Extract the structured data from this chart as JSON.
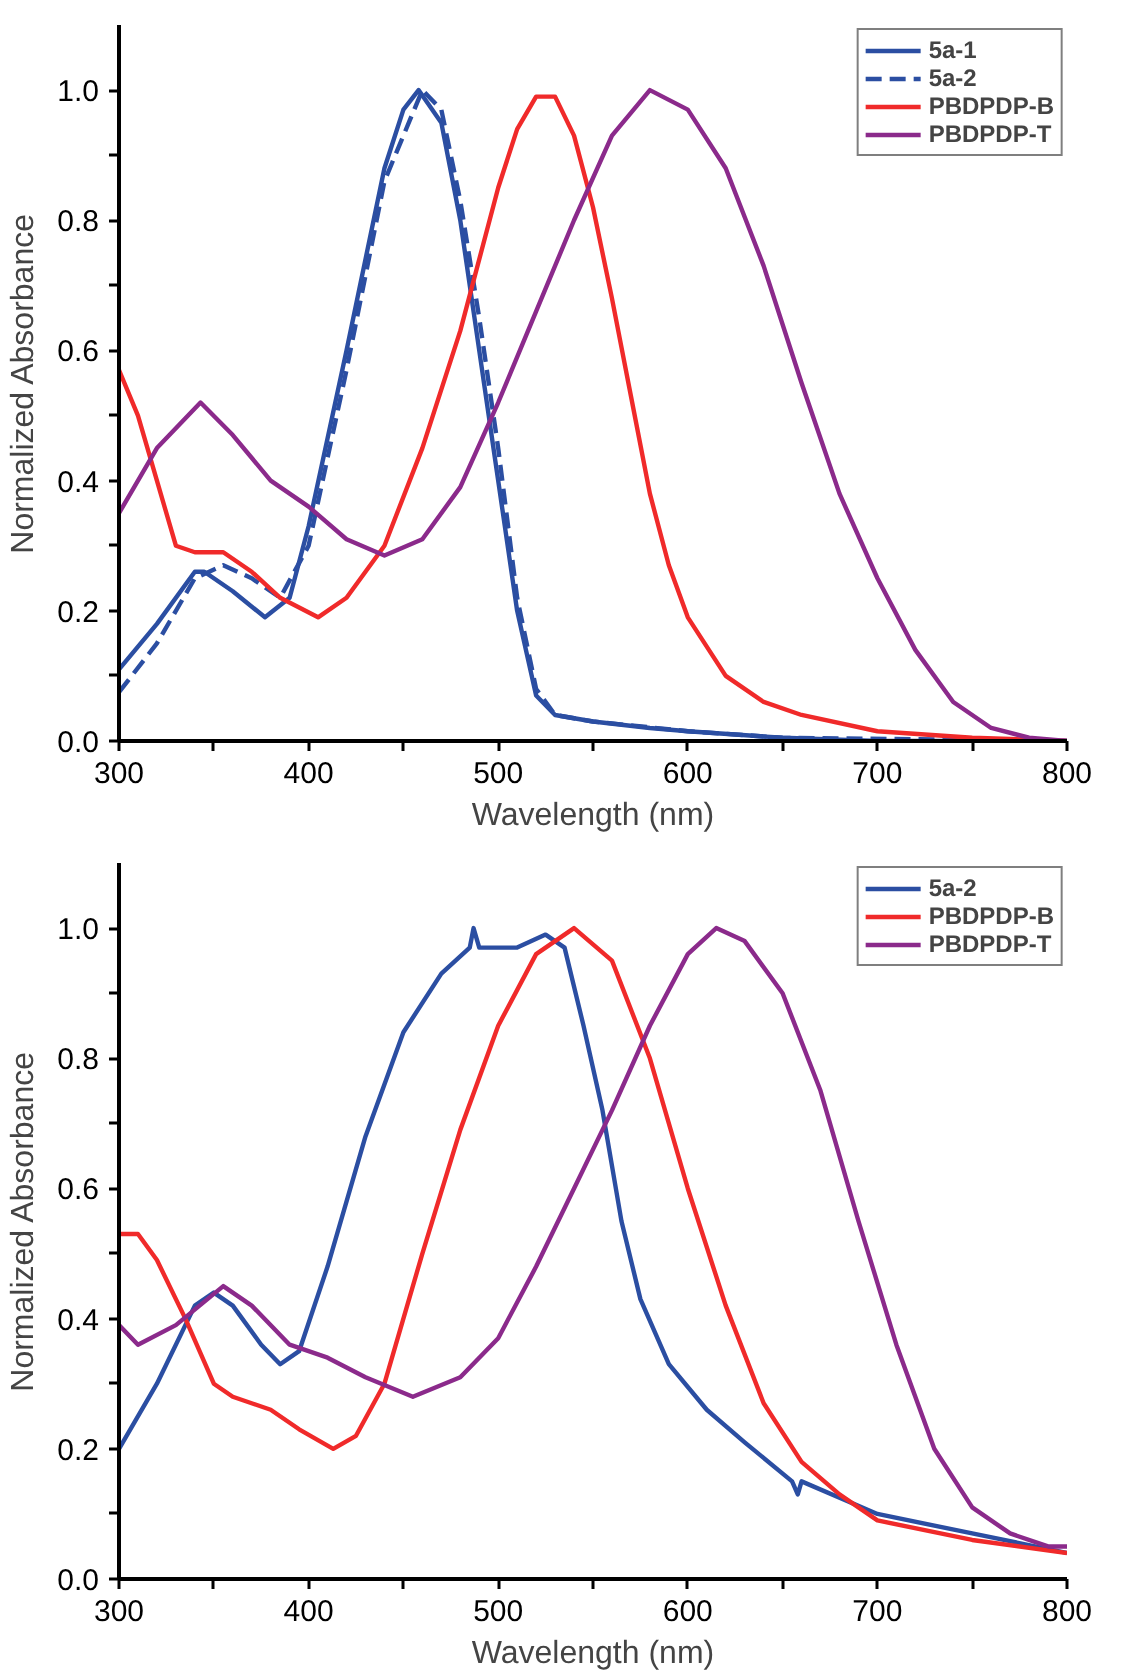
{
  "chart_data": [
    {
      "type": "line",
      "xlabel": "Wavelength (nm)",
      "ylabel": "Normalized Absorbance",
      "xlim": [
        300,
        800
      ],
      "ylim": [
        0,
        1.1
      ],
      "xticks": [
        300,
        {
          "value": 350,
          "label": null
        },
        400,
        {
          "value": 450,
          "label": null
        },
        500,
        {
          "value": 550,
          "label": null
        },
        600,
        {
          "value": 650,
          "label": null
        },
        700,
        {
          "value": 750,
          "label": null
        },
        800
      ],
      "yticks": [
        {
          "value": 0,
          "label": "0.0"
        },
        {
          "value": 0.1,
          "label": null
        },
        {
          "value": 0.2,
          "label": "0.2"
        },
        {
          "value": 0.3,
          "label": null
        },
        {
          "value": 0.4,
          "label": "0.4"
        },
        {
          "value": 0.5,
          "label": null
        },
        {
          "value": 0.6,
          "label": "0.6"
        },
        {
          "value": 0.7,
          "label": null
        },
        {
          "value": 0.8,
          "label": "0.8"
        },
        {
          "value": 0.9,
          "label": null
        },
        {
          "value": 1.0,
          "label": "1.0"
        }
      ],
      "legend": "top right",
      "grid": false,
      "series": [
        {
          "name": "5a-1",
          "color": "#2b4ea2",
          "line_style": "solid",
          "x": [
            300,
            320,
            340,
            345,
            360,
            377,
            390,
            400,
            420,
            440,
            450,
            458,
            470,
            480,
            490,
            500,
            510,
            520,
            530,
            550,
            580,
            600,
            650,
            700,
            800
          ],
          "values": [
            0.11,
            0.18,
            0.26,
            0.26,
            0.23,
            0.19,
            0.22,
            0.33,
            0.6,
            0.88,
            0.97,
            1.0,
            0.95,
            0.8,
            0.6,
            0.4,
            0.2,
            0.07,
            0.04,
            0.03,
            0.02,
            0.015,
            0.005,
            0.0,
            0.0
          ]
        },
        {
          "name": "5a-2",
          "color": "#2b4ea2",
          "line_style": "dashed",
          "x": [
            300,
            320,
            340,
            355,
            370,
            385,
            400,
            420,
            440,
            460,
            470,
            480,
            490,
            500,
            510,
            520,
            530,
            550,
            600,
            650,
            800
          ],
          "values": [
            0.075,
            0.15,
            0.25,
            0.27,
            0.25,
            0.22,
            0.3,
            0.57,
            0.86,
            1.0,
            0.97,
            0.83,
            0.65,
            0.45,
            0.22,
            0.08,
            0.04,
            0.03,
            0.015,
            0.005,
            0.0
          ]
        },
        {
          "name": "PBDPDP-B",
          "color": "#f02a2a",
          "line_style": "solid",
          "x": [
            300,
            310,
            320,
            330,
            340,
            355,
            370,
            385,
            405,
            420,
            440,
            460,
            480,
            500,
            510,
            520,
            530,
            540,
            550,
            560,
            570,
            580,
            590,
            600,
            620,
            640,
            660,
            700,
            750,
            800
          ],
          "values": [
            0.57,
            0.5,
            0.4,
            0.3,
            0.29,
            0.29,
            0.26,
            0.22,
            0.19,
            0.22,
            0.3,
            0.45,
            0.63,
            0.85,
            0.94,
            0.99,
            0.99,
            0.93,
            0.82,
            0.68,
            0.53,
            0.38,
            0.27,
            0.19,
            0.1,
            0.06,
            0.04,
            0.015,
            0.005,
            0.0
          ]
        },
        {
          "name": "PBDPDP-T",
          "color": "#8b2a8b",
          "line_style": "solid",
          "x": [
            300,
            320,
            343,
            360,
            380,
            400,
            420,
            440,
            460,
            480,
            500,
            520,
            540,
            560,
            580,
            600,
            620,
            640,
            660,
            680,
            700,
            720,
            740,
            760,
            780,
            800
          ],
          "values": [
            0.35,
            0.45,
            0.52,
            0.47,
            0.4,
            0.36,
            0.31,
            0.285,
            0.31,
            0.39,
            0.52,
            0.66,
            0.8,
            0.93,
            1.0,
            0.97,
            0.88,
            0.73,
            0.55,
            0.38,
            0.25,
            0.14,
            0.06,
            0.02,
            0.005,
            0.0
          ]
        }
      ]
    },
    {
      "type": "line",
      "xlabel": "Wavelength (nm)",
      "ylabel": "Normalized Absorbance",
      "xlim": [
        300,
        800
      ],
      "ylim": [
        0,
        1.1
      ],
      "xticks": [
        300,
        {
          "value": 350,
          "label": null
        },
        400,
        {
          "value": 450,
          "label": null
        },
        500,
        {
          "value": 550,
          "label": null
        },
        600,
        {
          "value": 650,
          "label": null
        },
        700,
        {
          "value": 750,
          "label": null
        },
        800
      ],
      "yticks": [
        {
          "value": 0,
          "label": "0.0"
        },
        {
          "value": 0.1,
          "label": null
        },
        {
          "value": 0.2,
          "label": "0.2"
        },
        {
          "value": 0.3,
          "label": null
        },
        {
          "value": 0.4,
          "label": "0.4"
        },
        {
          "value": 0.5,
          "label": null
        },
        {
          "value": 0.6,
          "label": "0.6"
        },
        {
          "value": 0.7,
          "label": null
        },
        {
          "value": 0.8,
          "label": "0.8"
        },
        {
          "value": 0.9,
          "label": null
        },
        {
          "value": 1.0,
          "label": "1.0"
        }
      ],
      "legend": "top right",
      "grid": false,
      "series": [
        {
          "name": "5a-2",
          "color": "#2b4ea2",
          "line_style": "solid",
          "x": [
            300,
            320,
            340,
            350,
            360,
            375,
            385,
            395,
            410,
            430,
            450,
            470,
            485,
            487,
            490,
            510,
            525,
            535,
            545,
            555,
            565,
            575,
            590,
            610,
            630,
            655,
            658,
            660,
            700,
            750,
            800
          ],
          "values": [
            0.2,
            0.3,
            0.42,
            0.44,
            0.42,
            0.36,
            0.33,
            0.35,
            0.48,
            0.68,
            0.84,
            0.93,
            0.97,
            1.0,
            0.97,
            0.97,
            0.99,
            0.97,
            0.85,
            0.72,
            0.55,
            0.43,
            0.33,
            0.26,
            0.21,
            0.15,
            0.13,
            0.15,
            0.1,
            0.07,
            0.04
          ]
        },
        {
          "name": "PBDPDP-B",
          "color": "#f02a2a",
          "line_style": "solid",
          "x": [
            300,
            310,
            320,
            335,
            350,
            360,
            380,
            395,
            413,
            425,
            440,
            460,
            480,
            500,
            520,
            540,
            560,
            580,
            600,
            620,
            640,
            660,
            680,
            700,
            750,
            800
          ],
          "values": [
            0.53,
            0.53,
            0.49,
            0.4,
            0.3,
            0.28,
            0.26,
            0.23,
            0.2,
            0.22,
            0.3,
            0.5,
            0.69,
            0.85,
            0.96,
            1.0,
            0.95,
            0.8,
            0.6,
            0.42,
            0.27,
            0.18,
            0.13,
            0.09,
            0.06,
            0.04
          ]
        },
        {
          "name": "PBDPDP-T",
          "color": "#8b2a8b",
          "line_style": "solid",
          "x": [
            300,
            310,
            330,
            355,
            370,
            390,
            410,
            430,
            455,
            480,
            500,
            520,
            540,
            560,
            580,
            600,
            615,
            630,
            650,
            670,
            690,
            710,
            730,
            750,
            770,
            790,
            800
          ],
          "values": [
            0.39,
            0.36,
            0.39,
            0.45,
            0.42,
            0.36,
            0.34,
            0.31,
            0.28,
            0.31,
            0.37,
            0.48,
            0.6,
            0.72,
            0.85,
            0.96,
            1.0,
            0.98,
            0.9,
            0.75,
            0.55,
            0.36,
            0.2,
            0.11,
            0.07,
            0.05,
            0.05
          ]
        }
      ]
    }
  ]
}
